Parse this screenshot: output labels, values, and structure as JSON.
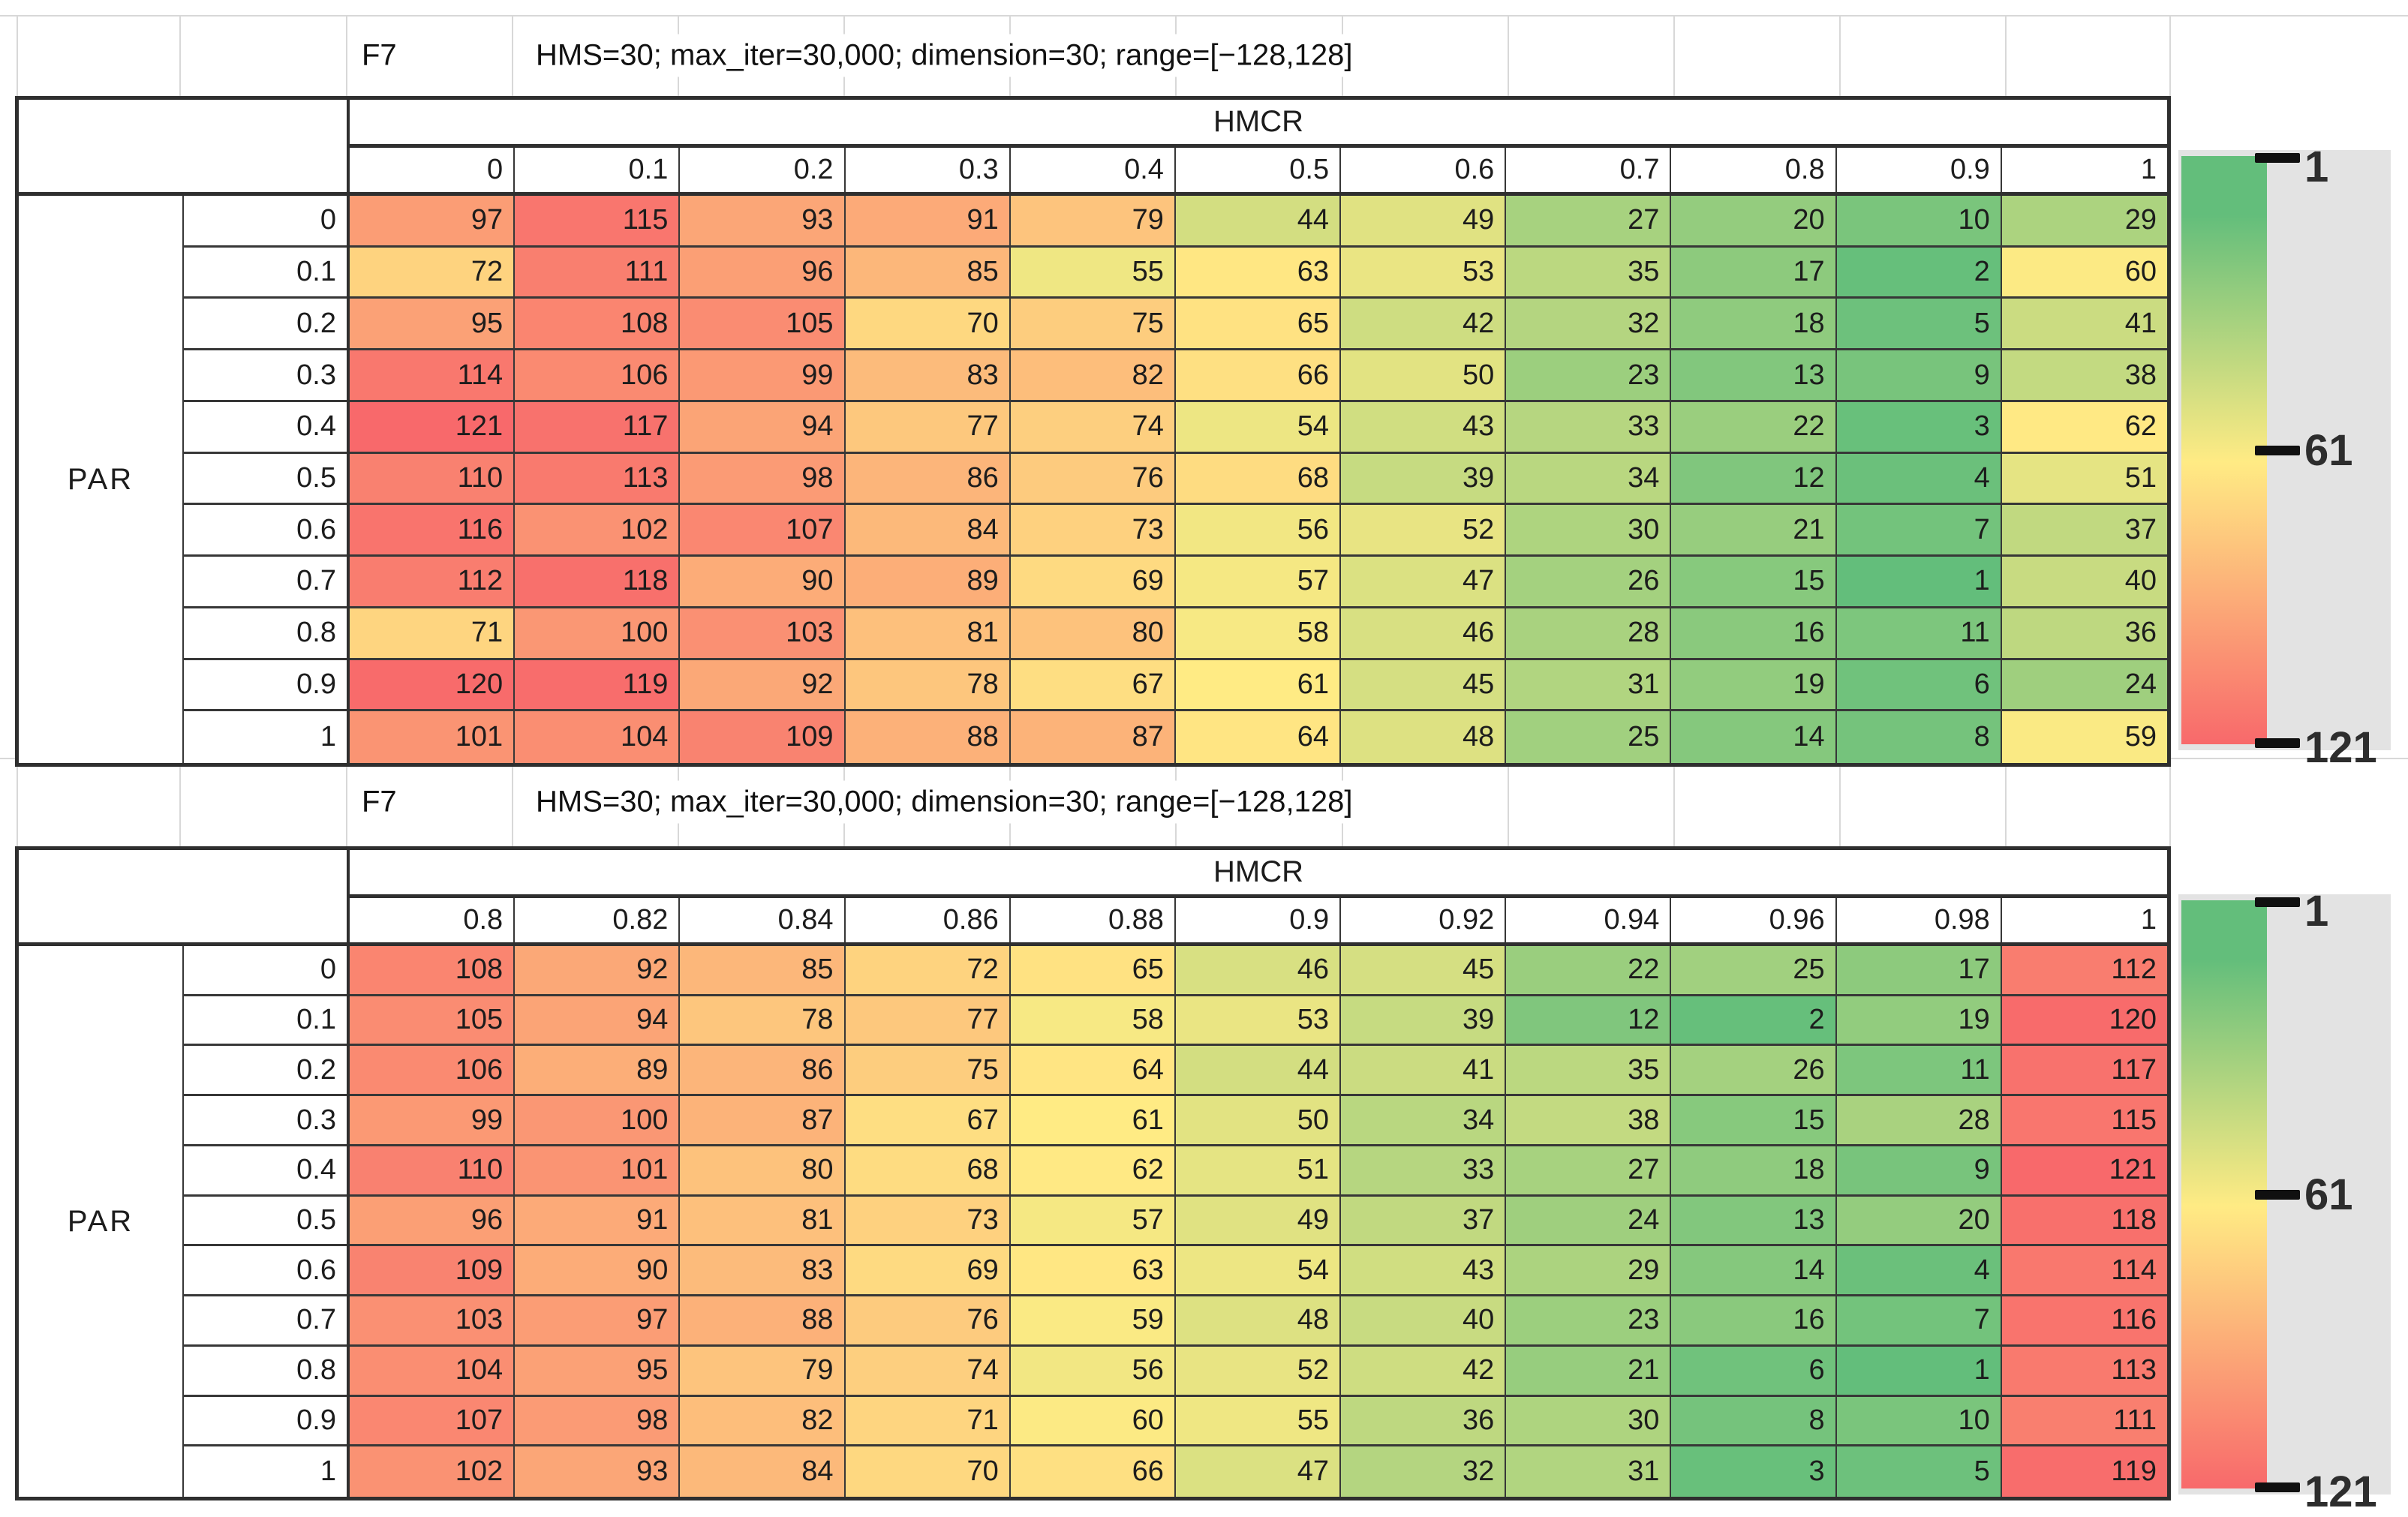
{
  "colors": {
    "scale_min_color": "#63BE7B",
    "scale_mid_color": "#FFEB84",
    "scale_max_color": "#F8696B",
    "legend_panel": "#E3E3E3",
    "grid_border": "#2F2F2F",
    "faint_gridline": "#D8D8D8"
  },
  "chart_data": [
    {
      "type": "heatmap",
      "function_id": "F7",
      "title": "HMS=30; max_iter=30,000; dimension=30; range=[−128,128]",
      "col_header": "HMCR",
      "row_header": "PAR",
      "columns": [
        "0",
        "0.1",
        "0.2",
        "0.3",
        "0.4",
        "0.5",
        "0.6",
        "0.7",
        "0.8",
        "0.9",
        "1"
      ],
      "rows": [
        "0",
        "0.1",
        "0.2",
        "0.3",
        "0.4",
        "0.5",
        "0.6",
        "0.7",
        "0.8",
        "0.9",
        "1"
      ],
      "values": [
        [
          97,
          115,
          93,
          91,
          79,
          44,
          49,
          27,
          20,
          10,
          29
        ],
        [
          72,
          111,
          96,
          85,
          55,
          63,
          53,
          35,
          17,
          2,
          60
        ],
        [
          95,
          108,
          105,
          70,
          75,
          65,
          42,
          32,
          18,
          5,
          41
        ],
        [
          114,
          106,
          99,
          83,
          82,
          66,
          50,
          23,
          13,
          9,
          38
        ],
        [
          121,
          117,
          94,
          77,
          74,
          54,
          43,
          33,
          22,
          3,
          62
        ],
        [
          110,
          113,
          98,
          86,
          76,
          68,
          39,
          34,
          12,
          4,
          51
        ],
        [
          116,
          102,
          107,
          84,
          73,
          56,
          52,
          30,
          21,
          7,
          37
        ],
        [
          112,
          118,
          90,
          89,
          69,
          57,
          47,
          26,
          15,
          1,
          40
        ],
        [
          71,
          100,
          103,
          81,
          80,
          58,
          46,
          28,
          16,
          11,
          36
        ],
        [
          120,
          119,
          92,
          78,
          67,
          61,
          45,
          31,
          19,
          6,
          24
        ],
        [
          101,
          104,
          109,
          88,
          87,
          64,
          48,
          25,
          14,
          8,
          59
        ]
      ],
      "scale": {
        "min": 1,
        "mid": 61,
        "max": 121
      },
      "legend_ticks": [
        "1",
        "61",
        "121"
      ],
      "legend_position": "right"
    },
    {
      "type": "heatmap",
      "function_id": "F7",
      "title": "HMS=30; max_iter=30,000; dimension=30; range=[−128,128]",
      "col_header": "HMCR",
      "row_header": "PAR",
      "columns": [
        "0.8",
        "0.82",
        "0.84",
        "0.86",
        "0.88",
        "0.9",
        "0.92",
        "0.94",
        "0.96",
        "0.98",
        "1"
      ],
      "rows": [
        "0",
        "0.1",
        "0.2",
        "0.3",
        "0.4",
        "0.5",
        "0.6",
        "0.7",
        "0.8",
        "0.9",
        "1"
      ],
      "values": [
        [
          108,
          92,
          85,
          72,
          65,
          46,
          45,
          22,
          25,
          17,
          112
        ],
        [
          105,
          94,
          78,
          77,
          58,
          53,
          39,
          12,
          2,
          19,
          120
        ],
        [
          106,
          89,
          86,
          75,
          64,
          44,
          41,
          35,
          26,
          11,
          117
        ],
        [
          99,
          100,
          87,
          67,
          61,
          50,
          34,
          38,
          15,
          28,
          115
        ],
        [
          110,
          101,
          80,
          68,
          62,
          51,
          33,
          27,
          18,
          9,
          121
        ],
        [
          96,
          91,
          81,
          73,
          57,
          49,
          37,
          24,
          13,
          20,
          118
        ],
        [
          109,
          90,
          83,
          69,
          63,
          54,
          43,
          29,
          14,
          4,
          114
        ],
        [
          103,
          97,
          88,
          76,
          59,
          48,
          40,
          23,
          16,
          7,
          116
        ],
        [
          104,
          95,
          79,
          74,
          56,
          52,
          42,
          21,
          6,
          1,
          113
        ],
        [
          107,
          98,
          82,
          71,
          60,
          55,
          36,
          30,
          8,
          10,
          111
        ],
        [
          102,
          93,
          84,
          70,
          66,
          47,
          32,
          31,
          3,
          5,
          119
        ]
      ],
      "scale": {
        "min": 1,
        "mid": 61,
        "max": 121
      },
      "legend_ticks": [
        "1",
        "61",
        "121"
      ],
      "legend_position": "right"
    }
  ]
}
